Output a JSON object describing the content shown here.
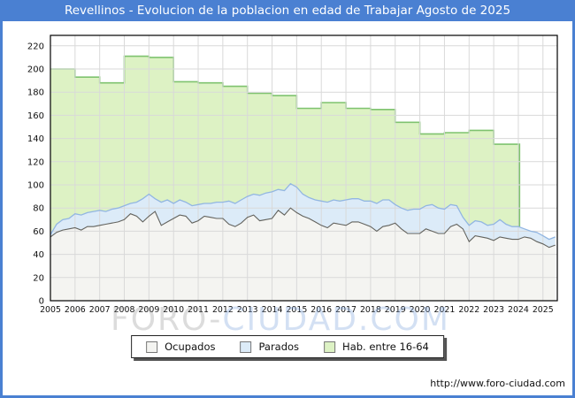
{
  "colors": {
    "accent_blue": "#4a80d2",
    "grid": "#d9d9d9",
    "plot_border": "#000000",
    "watermark_gray": "rgba(130,130,130,0.28)",
    "watermark_blue": "rgba(120,160,220,0.33)"
  },
  "watermark": {
    "part1": "FORO-",
    "part2": "CIUDAD.COM"
  },
  "footer": {
    "url": "http://www.foro-ciudad.com"
  },
  "chart_data": {
    "type": "area",
    "title": "Revellinos - Evolucion de la poblacion en edad de Trabajar Agosto de 2025",
    "xlabel": "",
    "ylabel": "",
    "x_range": [
      2005,
      2025.583
    ],
    "y_range": [
      0,
      229
    ],
    "y_ticks": [
      0,
      20,
      40,
      60,
      80,
      100,
      120,
      140,
      160,
      180,
      200,
      220
    ],
    "x_ticks": [
      2005,
      2006,
      2007,
      2008,
      2009,
      2010,
      2011,
      2012,
      2013,
      2014,
      2015,
      2016,
      2017,
      2018,
      2019,
      2020,
      2021,
      2022,
      2023,
      2024,
      2025
    ],
    "grid": true,
    "legend_position": "bottom-center",
    "series": [
      {
        "name": "Ocupados",
        "fill": "#f4f4f1",
        "stroke": "#63635e",
        "x_start": 2005,
        "x_step": 0.25,
        "values": [
          55,
          59,
          61,
          62,
          63,
          61,
          64,
          64,
          65,
          66,
          67,
          68,
          70,
          75,
          73,
          68,
          73,
          77,
          65,
          68,
          71,
          74,
          73,
          67,
          69,
          73,
          72,
          71,
          71,
          66,
          64,
          67,
          72,
          74,
          69,
          70,
          71,
          78,
          74,
          80,
          76,
          73,
          71,
          68,
          65,
          63,
          67,
          66,
          65,
          68,
          68,
          66,
          64,
          60,
          64,
          65,
          67,
          62,
          58,
          58,
          58,
          62,
          60,
          58,
          58,
          64,
          66,
          62,
          51,
          56,
          55,
          54,
          52,
          55,
          54,
          53,
          53,
          55,
          54,
          51,
          49,
          46,
          48
        ]
      },
      {
        "name": "Parados",
        "stacked_on": "Ocupados",
        "fill": "#dcebf8",
        "stroke": "#92b6e2",
        "x_start": 2005,
        "x_step": 0.25,
        "values": [
          2,
          7,
          9,
          9,
          12,
          13,
          12,
          13,
          13,
          11,
          12,
          12,
          12,
          9,
          12,
          20,
          19,
          11,
          20,
          19,
          13,
          13,
          12,
          15,
          14,
          11,
          12,
          14,
          14,
          20,
          20,
          20,
          18,
          18,
          22,
          23,
          23,
          18,
          21,
          21,
          22,
          19,
          18,
          19,
          21,
          22,
          20,
          20,
          22,
          20,
          20,
          20,
          22,
          24,
          23,
          22,
          16,
          18,
          20,
          21,
          21,
          20,
          23,
          22,
          21,
          19,
          16,
          10,
          14,
          13,
          13,
          11,
          14,
          15,
          12,
          11,
          11,
          7,
          6,
          8,
          7,
          7,
          7
        ]
      },
      {
        "name": "Hab. entre 16-64",
        "step": "yearly",
        "fill": "#ddf2c4",
        "stroke": "#7fc36f",
        "x_start": 2005,
        "x_step": 1,
        "x_end": 2024.05,
        "values": [
          200,
          193,
          188,
          211,
          210,
          189,
          188,
          185,
          179,
          177,
          166,
          171,
          166,
          165,
          154,
          144,
          145,
          147,
          135
        ]
      }
    ]
  }
}
